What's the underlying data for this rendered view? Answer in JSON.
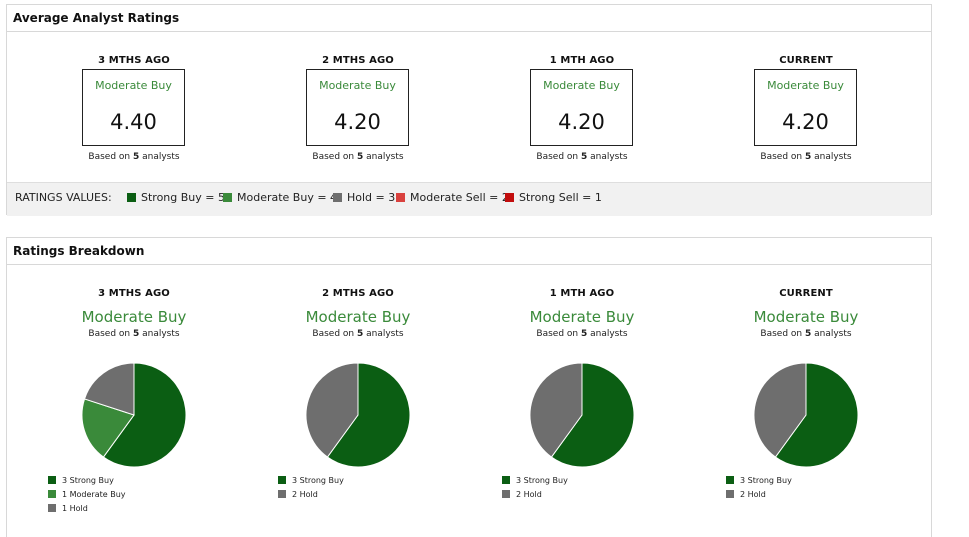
{
  "avg_ratings": {
    "title": "Average Analyst Ratings",
    "based_prefix": "Based on",
    "based_suffix": "analysts",
    "columns": [
      {
        "label": "3 MTHS AGO",
        "rating": "Moderate Buy",
        "score": "4.40",
        "analysts": "5"
      },
      {
        "label": "2 MTHS AGO",
        "rating": "Moderate Buy",
        "score": "4.20",
        "analysts": "5"
      },
      {
        "label": "1 MTH AGO",
        "rating": "Moderate Buy",
        "score": "4.20",
        "analysts": "5"
      },
      {
        "label": "CURRENT",
        "rating": "Moderate Buy",
        "score": "4.20",
        "analysts": "5"
      }
    ],
    "legend": {
      "title": "RATINGS VALUES:",
      "items": [
        {
          "label": "Strong Buy = 5",
          "color": "#0b5e13"
        },
        {
          "label": "Moderate Buy = 4",
          "color": "#3a8a3a"
        },
        {
          "label": "Hold = 3",
          "color": "#6e6e6e"
        },
        {
          "label": "Moderate Sell = 2",
          "color": "#d9413e"
        },
        {
          "label": "Strong Sell = 1",
          "color": "#c20d0d"
        }
      ]
    }
  },
  "breakdown": {
    "title": "Ratings Breakdown",
    "based_prefix": "Based on",
    "based_suffix": "analysts",
    "columns": [
      {
        "label": "3 MTHS AGO",
        "rating": "Moderate Buy",
        "analysts": "5",
        "slices": [
          {
            "name": "Strong Buy",
            "count": 3,
            "text": "3 Strong Buy",
            "color": "#0b5e13"
          },
          {
            "name": "Moderate Buy",
            "count": 1,
            "text": "1 Moderate Buy",
            "color": "#3a8a3a"
          },
          {
            "name": "Hold",
            "count": 1,
            "text": "1 Hold",
            "color": "#6e6e6e"
          }
        ]
      },
      {
        "label": "2 MTHS AGO",
        "rating": "Moderate Buy",
        "analysts": "5",
        "slices": [
          {
            "name": "Strong Buy",
            "count": 3,
            "text": "3 Strong Buy",
            "color": "#0b5e13"
          },
          {
            "name": "Hold",
            "count": 2,
            "text": "2 Hold",
            "color": "#6e6e6e"
          }
        ]
      },
      {
        "label": "1 MTH AGO",
        "rating": "Moderate Buy",
        "analysts": "5",
        "slices": [
          {
            "name": "Strong Buy",
            "count": 3,
            "text": "3 Strong Buy",
            "color": "#0b5e13"
          },
          {
            "name": "Hold",
            "count": 2,
            "text": "2 Hold",
            "color": "#6e6e6e"
          }
        ]
      },
      {
        "label": "CURRENT",
        "rating": "Moderate Buy",
        "analysts": "5",
        "slices": [
          {
            "name": "Strong Buy",
            "count": 3,
            "text": "3 Strong Buy",
            "color": "#0b5e13"
          },
          {
            "name": "Hold",
            "count": 2,
            "text": "2 Hold",
            "color": "#6e6e6e"
          }
        ]
      }
    ]
  }
}
